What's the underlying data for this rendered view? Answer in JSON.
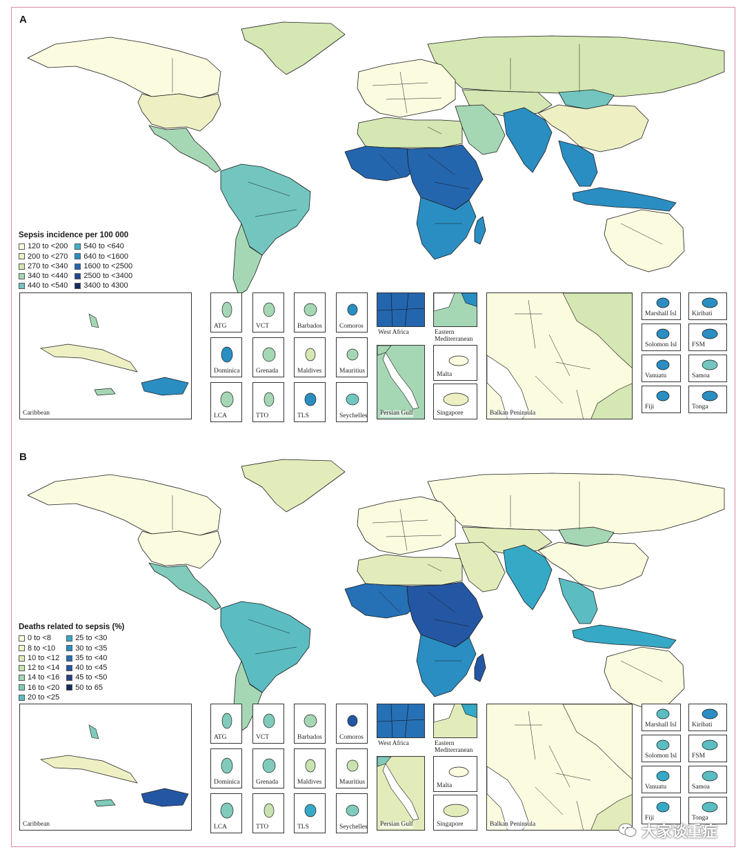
{
  "panels": [
    {
      "letter": "A",
      "legend_title": "Sepsis incidence per 100 000",
      "legend_col1": [
        {
          "label": "120 to <200",
          "color": "#fbfbe0"
        },
        {
          "label": "200 to <270",
          "color": "#eef0c4"
        },
        {
          "label": "270 to <340",
          "color": "#d5e7b2"
        },
        {
          "label": "340 to <440",
          "color": "#a6d7b5"
        },
        {
          "label": "440 to <540",
          "color": "#72c6bf"
        }
      ],
      "legend_col2": [
        {
          "label": "540 to <640",
          "color": "#3fb2c6"
        },
        {
          "label": "640 to <1600",
          "color": "#2a8ec2"
        },
        {
          "label": "1600 to <2500",
          "color": "#2466ae"
        },
        {
          "label": "2500 to <3400",
          "color": "#23478f"
        },
        {
          "label": "3400 to 4300",
          "color": "#142b5c"
        }
      ],
      "regions": {
        "north_america": "#fbfbe0",
        "usa": "#eef0c4",
        "greenland": "#d5e7b2",
        "mexico_central": "#a6d7b5",
        "south_america": "#72c6bf",
        "argentina": "#a6d7b5",
        "europe": "#fbfbe0",
        "russia": "#d5e7b2",
        "north_africa": "#d5e7b2",
        "west_africa": "#2466ae",
        "central_africa": "#2466ae",
        "southern_africa": "#2a8ec2",
        "madagascar": "#2a8ec2",
        "middle_east": "#a6d7b5",
        "india": "#2a8ec2",
        "china": "#eef0c4",
        "mongolia": "#72c6bf",
        "se_asia": "#2a8ec2",
        "indonesia": "#2a8ec2",
        "australia": "#fbfbe0",
        "central_asia": "#d5e7b2"
      },
      "insets": {
        "caribbean": "Caribbean",
        "small": [
          {
            "label": "ATG",
            "color": "#a6d7b5"
          },
          {
            "label": "VCT",
            "color": "#a6d7b5"
          },
          {
            "label": "Barbados",
            "color": "#a6d7b5"
          },
          {
            "label": "Comoros",
            "color": "#2a8ec2"
          },
          {
            "label": "Dominica",
            "color": "#2a8ec2"
          },
          {
            "label": "Grenada",
            "color": "#a6d7b5"
          },
          {
            "label": "Maldives",
            "color": "#d5e7b2"
          },
          {
            "label": "Mauritius",
            "color": "#a6d7b5"
          },
          {
            "label": "LCA",
            "color": "#a6d7b5"
          },
          {
            "label": "TTO",
            "color": "#a6d7b5"
          },
          {
            "label": "TLS",
            "color": "#2a8ec2"
          },
          {
            "label": "Seychelles",
            "color": "#72c6bf"
          }
        ],
        "west_africa": "West Africa",
        "eastern_med": "Eastern Mediterranean",
        "persian_gulf": "Persian Gulf",
        "malta": "Malta",
        "singapore": "Singapore",
        "balkan": "Balkan Peninsula",
        "pacific": [
          {
            "label": "Marshall Isl",
            "color": "#2a8ec2"
          },
          {
            "label": "Kiribati",
            "color": "#2a8ec2"
          },
          {
            "label": "Solomon Isl",
            "color": "#2a8ec2"
          },
          {
            "label": "FSM",
            "color": "#2a8ec2"
          },
          {
            "label": "Vanuatu",
            "color": "#2a8ec2"
          },
          {
            "label": "Samoa",
            "color": "#72c6bf"
          },
          {
            "label": "Fiji",
            "color": "#2a8ec2"
          },
          {
            "label": "Tonga",
            "color": "#2a8ec2"
          }
        ]
      }
    },
    {
      "letter": "B",
      "legend_title": "Deaths related to sepsis (%)",
      "legend_col1": [
        {
          "label": "0 to <8",
          "color": "#fbfbe0"
        },
        {
          "label": "8 to <10",
          "color": "#f3f3cd"
        },
        {
          "label": "10 to <12",
          "color": "#e2ecbb"
        },
        {
          "label": "12 to <14",
          "color": "#c9e3b0"
        },
        {
          "label": "14 to <16",
          "color": "#a6d7b5"
        },
        {
          "label": "16 to <20",
          "color": "#80cbbb"
        },
        {
          "label": "20 to <25",
          "color": "#5bbdc2"
        }
      ],
      "legend_col2": [
        {
          "label": "25 to <30",
          "color": "#36a9c6"
        },
        {
          "label": "30 to <35",
          "color": "#2a8ec2"
        },
        {
          "label": "35 to <40",
          "color": "#2670b5"
        },
        {
          "label": "40 to <45",
          "color": "#2457a3"
        },
        {
          "label": "45 to <50",
          "color": "#233f86"
        },
        {
          "label": "50 to 65",
          "color": "#142b5c"
        }
      ],
      "regions": {
        "north_america": "#fbfbe0",
        "usa": "#fbfbe0",
        "greenland": "#e2ecbb",
        "mexico_central": "#80cbbb",
        "south_america": "#5bbdc2",
        "argentina": "#a6d7b5",
        "europe": "#fbfbe0",
        "russia": "#fbfbe0",
        "north_africa": "#e2ecbb",
        "west_africa": "#2670b5",
        "central_africa": "#2457a3",
        "southern_africa": "#2a8ec2",
        "madagascar": "#2457a3",
        "middle_east": "#e2ecbb",
        "india": "#36a9c6",
        "china": "#fbfbe0",
        "mongolia": "#a6d7b5",
        "se_asia": "#5bbdc2",
        "indonesia": "#36a9c6",
        "australia": "#fbfbe0",
        "central_asia": "#e2ecbb"
      },
      "insets": {
        "caribbean": "Caribbean",
        "small": [
          {
            "label": "ATG",
            "color": "#80cbbb"
          },
          {
            "label": "VCT",
            "color": "#80cbbb"
          },
          {
            "label": "Barbados",
            "color": "#a6d7b5"
          },
          {
            "label": "Comoros",
            "color": "#2457a3"
          },
          {
            "label": "Dominica",
            "color": "#80cbbb"
          },
          {
            "label": "Grenada",
            "color": "#80cbbb"
          },
          {
            "label": "Maldives",
            "color": "#c9e3b0"
          },
          {
            "label": "Mauritius",
            "color": "#c9e3b0"
          },
          {
            "label": "LCA",
            "color": "#80cbbb"
          },
          {
            "label": "TTO",
            "color": "#c9e3b0"
          },
          {
            "label": "TLS",
            "color": "#36a9c6"
          },
          {
            "label": "Seychelles",
            "color": "#80cbbb"
          }
        ],
        "west_africa": "West Africa",
        "eastern_med": "Eastern Mediterranean",
        "persian_gulf": "Persian Gulf",
        "malta": "Malta",
        "singapore": "Singapore",
        "balkan": "Balkan Peninsula",
        "pacific": [
          {
            "label": "Marshall Isl",
            "color": "#5bbdc2"
          },
          {
            "label": "Kiribati",
            "color": "#2a8ec2"
          },
          {
            "label": "Solomon Isl",
            "color": "#5bbdc2"
          },
          {
            "label": "FSM",
            "color": "#5bbdc2"
          },
          {
            "label": "Vanuatu",
            "color": "#36a9c6"
          },
          {
            "label": "Samoa",
            "color": "#5bbdc2"
          },
          {
            "label": "Fiji",
            "color": "#36a9c6"
          },
          {
            "label": "Tonga",
            "color": "#5bbdc2"
          }
        ]
      }
    }
  ],
  "watermark": "大家谈重症"
}
